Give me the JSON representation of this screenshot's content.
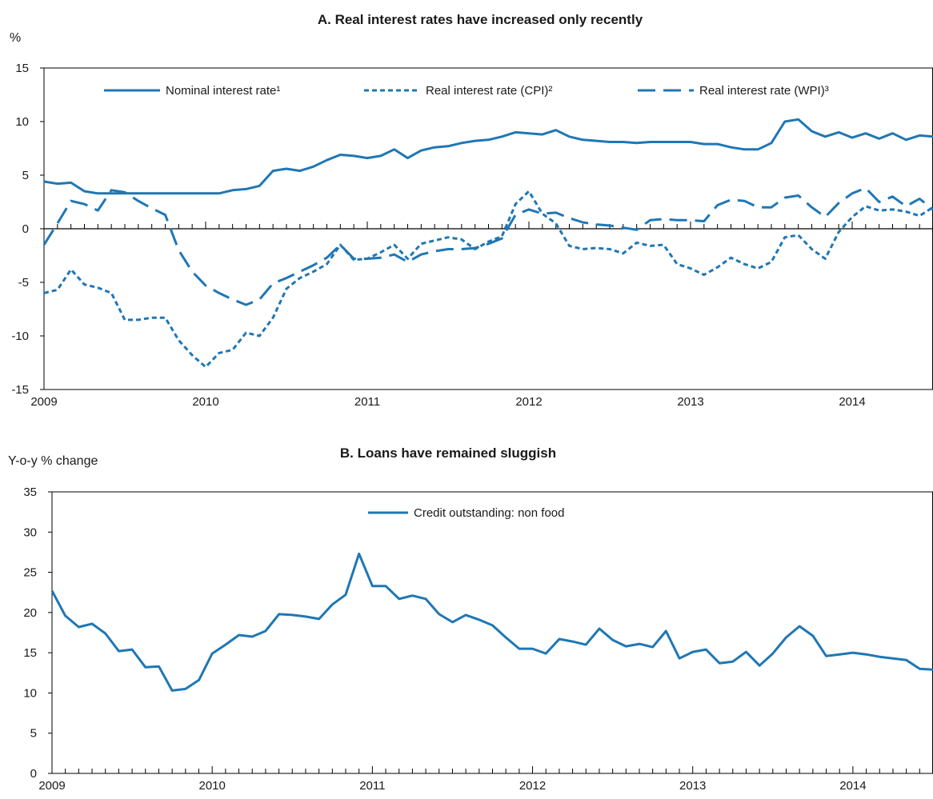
{
  "colors": {
    "series": "#1f77b4",
    "axis": "#000000"
  },
  "chart_data": [
    {
      "type": "line",
      "title": "A. Real interest rates have increased only recently",
      "ylabel": "%",
      "ylim": [
        -15,
        15
      ],
      "y_ticks": [
        15,
        10,
        5,
        0,
        -5,
        -10,
        -15
      ],
      "x_range": [
        2009.0,
        2014.5
      ],
      "x_labels": [
        "2009",
        "2010",
        "2011",
        "2012",
        "2013",
        "2014"
      ],
      "grid": false,
      "legend_position": "top",
      "series": [
        {
          "name": "Nominal interest rate¹",
          "style": "solid",
          "x": [
            2009.0,
            2009.083,
            2009.167,
            2009.25,
            2009.333,
            2009.417,
            2009.5,
            2009.583,
            2009.667,
            2009.75,
            2009.833,
            2009.917,
            2010.0,
            2010.083,
            2010.167,
            2010.25,
            2010.333,
            2010.417,
            2010.5,
            2010.583,
            2010.667,
            2010.75,
            2010.833,
            2010.917,
            2011.0,
            2011.083,
            2011.167,
            2011.25,
            2011.333,
            2011.417,
            2011.5,
            2011.583,
            2011.667,
            2011.75,
            2011.833,
            2011.917,
            2012.0,
            2012.083,
            2012.167,
            2012.25,
            2012.333,
            2012.417,
            2012.5,
            2012.583,
            2012.667,
            2012.75,
            2012.833,
            2012.917,
            2013.0,
            2013.083,
            2013.167,
            2013.25,
            2013.333,
            2013.417,
            2013.5,
            2013.583,
            2013.667,
            2013.75,
            2013.833,
            2013.917,
            2014.0,
            2014.083,
            2014.167,
            2014.25,
            2014.333,
            2014.417,
            2014.5
          ],
          "y": [
            4.4,
            4.2,
            4.3,
            3.5,
            3.3,
            3.3,
            3.3,
            3.3,
            3.3,
            3.3,
            3.3,
            3.3,
            3.3,
            3.3,
            3.6,
            3.7,
            4.0,
            5.4,
            5.6,
            5.4,
            5.8,
            6.4,
            6.9,
            6.8,
            6.6,
            6.8,
            7.4,
            6.6,
            7.3,
            7.6,
            7.7,
            8.0,
            8.2,
            8.3,
            8.6,
            9.0,
            8.9,
            8.8,
            9.2,
            8.6,
            8.3,
            8.2,
            8.1,
            8.1,
            8.0,
            8.1,
            8.1,
            8.1,
            8.1,
            7.9,
            7.9,
            7.6,
            7.4,
            7.4,
            8.0,
            10.0,
            10.2,
            9.1,
            8.6,
            9.0,
            8.5,
            8.9,
            8.4,
            8.9,
            8.3,
            8.7,
            8.6
          ]
        },
        {
          "name": "Real interest rate (CPI)²",
          "style": "dotted",
          "x": [
            2009.0,
            2009.083,
            2009.167,
            2009.25,
            2009.333,
            2009.417,
            2009.5,
            2009.583,
            2009.667,
            2009.75,
            2009.833,
            2009.917,
            2010.0,
            2010.083,
            2010.167,
            2010.25,
            2010.333,
            2010.417,
            2010.5,
            2010.583,
            2010.667,
            2010.75,
            2010.833,
            2010.917,
            2011.0,
            2011.083,
            2011.167,
            2011.25,
            2011.333,
            2011.417,
            2011.5,
            2011.583,
            2011.667,
            2011.75,
            2011.833,
            2011.917,
            2012.0,
            2012.083,
            2012.167,
            2012.25,
            2012.333,
            2012.417,
            2012.5,
            2012.583,
            2012.667,
            2012.75,
            2012.833,
            2012.917,
            2013.0,
            2013.083,
            2013.167,
            2013.25,
            2013.333,
            2013.417,
            2013.5,
            2013.583,
            2013.667,
            2013.75,
            2013.833,
            2013.917,
            2014.0,
            2014.083,
            2014.167,
            2014.25,
            2014.333,
            2014.417,
            2014.5
          ],
          "y": [
            -6.0,
            -5.7,
            -3.8,
            -5.2,
            -5.5,
            -6.0,
            -8.5,
            -8.5,
            -8.3,
            -8.3,
            -10.4,
            -11.8,
            -12.9,
            -11.6,
            -11.3,
            -9.7,
            -10.0,
            -8.3,
            -5.6,
            -4.6,
            -4.0,
            -3.3,
            -1.5,
            -2.9,
            -2.8,
            -2.2,
            -1.5,
            -2.8,
            -1.4,
            -1.1,
            -0.8,
            -1.0,
            -1.9,
            -1.2,
            -0.7,
            2.3,
            3.5,
            1.4,
            0.5,
            -1.6,
            -1.9,
            -1.8,
            -1.9,
            -2.3,
            -1.3,
            -1.6,
            -1.5,
            -3.3,
            -3.7,
            -4.3,
            -3.6,
            -2.7,
            -3.3,
            -3.7,
            -3.1,
            -0.8,
            -0.6,
            -1.9,
            -2.8,
            -0.3,
            1.1,
            2.1,
            1.7,
            1.8,
            1.6,
            1.2,
            2.0
          ]
        },
        {
          "name": "Real interest rate (WPI)³",
          "style": "dashed",
          "x": [
            2009.0,
            2009.083,
            2009.167,
            2009.25,
            2009.333,
            2009.417,
            2009.5,
            2009.583,
            2009.667,
            2009.75,
            2009.833,
            2009.917,
            2010.0,
            2010.083,
            2010.167,
            2010.25,
            2010.333,
            2010.417,
            2010.5,
            2010.583,
            2010.667,
            2010.75,
            2010.833,
            2010.917,
            2011.0,
            2011.083,
            2011.167,
            2011.25,
            2011.333,
            2011.417,
            2011.5,
            2011.583,
            2011.667,
            2011.75,
            2011.833,
            2011.917,
            2012.0,
            2012.083,
            2012.167,
            2012.25,
            2012.333,
            2012.417,
            2012.5,
            2012.583,
            2012.667,
            2012.75,
            2012.833,
            2012.917,
            2013.0,
            2013.083,
            2013.167,
            2013.25,
            2013.333,
            2013.417,
            2013.5,
            2013.583,
            2013.667,
            2013.75,
            2013.833,
            2013.917,
            2014.0,
            2014.083,
            2014.167,
            2014.25,
            2014.333,
            2014.417,
            2014.5
          ],
          "y": [
            -1.5,
            0.5,
            2.6,
            2.3,
            1.7,
            3.6,
            3.4,
            2.6,
            1.9,
            1.3,
            -2.0,
            -4.0,
            -5.3,
            -6.0,
            -6.6,
            -7.1,
            -6.6,
            -5.1,
            -4.6,
            -4.0,
            -3.4,
            -2.7,
            -1.5,
            -2.8,
            -2.8,
            -2.7,
            -2.4,
            -3.1,
            -2.4,
            -2.1,
            -1.9,
            -1.9,
            -1.8,
            -1.4,
            -0.9,
            1.3,
            1.8,
            1.4,
            1.5,
            1.0,
            0.6,
            0.4,
            0.3,
            0.1,
            -0.1,
            0.8,
            0.9,
            0.8,
            0.8,
            0.7,
            2.2,
            2.7,
            2.6,
            2.0,
            2.0,
            2.9,
            3.1,
            2.0,
            1.1,
            2.4,
            3.3,
            3.8,
            2.5,
            3.0,
            2.1,
            2.8,
            1.8
          ]
        }
      ]
    },
    {
      "type": "line",
      "title": "B. Loans have remained sluggish",
      "ylabel": "Y-o-y % change",
      "ylim": [
        0,
        35
      ],
      "y_ticks": [
        35,
        30,
        25,
        20,
        15,
        10,
        5,
        0
      ],
      "x_range": [
        2009.0,
        2014.5
      ],
      "x_labels": [
        "2009",
        "2010",
        "2011",
        "2012",
        "2013",
        "2014"
      ],
      "grid": false,
      "legend_position": "top",
      "series": [
        {
          "name": "Credit outstanding: non food",
          "style": "solid",
          "x": [
            2009.0,
            2009.083,
            2009.167,
            2009.25,
            2009.333,
            2009.417,
            2009.5,
            2009.583,
            2009.667,
            2009.75,
            2009.833,
            2009.917,
            2010.0,
            2010.083,
            2010.167,
            2010.25,
            2010.333,
            2010.417,
            2010.5,
            2010.583,
            2010.667,
            2010.75,
            2010.833,
            2010.917,
            2011.0,
            2011.083,
            2011.167,
            2011.25,
            2011.333,
            2011.417,
            2011.5,
            2011.583,
            2011.667,
            2011.75,
            2011.833,
            2011.917,
            2012.0,
            2012.083,
            2012.167,
            2012.25,
            2012.333,
            2012.417,
            2012.5,
            2012.583,
            2012.667,
            2012.75,
            2012.833,
            2012.917,
            2013.0,
            2013.083,
            2013.167,
            2013.25,
            2013.333,
            2013.417,
            2013.5,
            2013.583,
            2013.667,
            2013.75,
            2013.833,
            2013.917,
            2014.0,
            2014.083,
            2014.167,
            2014.25,
            2014.333,
            2014.417,
            2014.5
          ],
          "y": [
            22.7,
            19.6,
            18.2,
            18.6,
            17.4,
            15.2,
            15.4,
            13.2,
            13.3,
            10.3,
            10.5,
            11.6,
            14.9,
            16.0,
            17.2,
            17.0,
            17.7,
            19.8,
            19.7,
            19.5,
            19.2,
            21.0,
            22.2,
            27.3,
            23.3,
            23.3,
            21.7,
            22.1,
            21.7,
            19.8,
            18.8,
            19.7,
            19.1,
            18.4,
            16.9,
            15.5,
            15.5,
            14.9,
            16.7,
            16.4,
            16.0,
            18.0,
            16.6,
            15.8,
            16.1,
            15.7,
            17.7,
            14.3,
            15.1,
            15.4,
            13.7,
            13.9,
            15.1,
            13.4,
            14.9,
            16.9,
            18.3,
            17.1,
            14.6,
            14.8,
            15.0,
            14.8,
            14.5,
            14.3,
            14.1,
            13.0,
            12.9
          ]
        }
      ]
    }
  ]
}
